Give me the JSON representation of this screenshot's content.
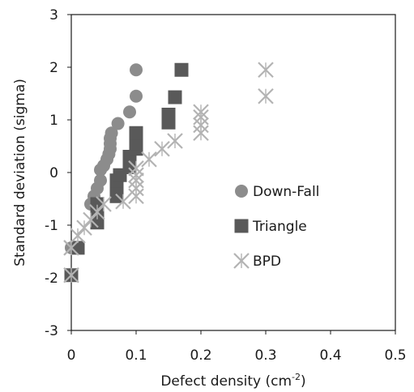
{
  "chart_data": {
    "type": "scatter",
    "xlabel": "Defect density (cm",
    "xlabel_sup": "-2",
    "xlabel_close": ")",
    "ylabel": "Standard deviation (sigma)",
    "xlim": [
      0,
      0.5
    ],
    "ylim": [
      -3,
      3
    ],
    "x_ticks": [
      "0",
      "0.1",
      "0.2",
      "0.3",
      "0.4",
      "0.5"
    ],
    "y_ticks": [
      "3",
      "2",
      "1",
      "0",
      "-1",
      "-2",
      "-3"
    ],
    "grid": false,
    "legend_position": "right",
    "series": [
      {
        "name": "Down-Fall",
        "marker": "circle",
        "color": "#8c8c8c",
        "points": [
          [
            0,
            -1.95
          ],
          [
            0,
            -1.43
          ],
          [
            0.03,
            -0.6
          ],
          [
            0.035,
            -0.45
          ],
          [
            0.04,
            -0.3
          ],
          [
            0.045,
            -0.15
          ],
          [
            0.045,
            0.05
          ],
          [
            0.05,
            0.13
          ],
          [
            0.055,
            0.25
          ],
          [
            0.058,
            0.35
          ],
          [
            0.06,
            0.45
          ],
          [
            0.06,
            0.55
          ],
          [
            0.06,
            0.65
          ],
          [
            0.062,
            0.75
          ],
          [
            0.072,
            0.93
          ],
          [
            0.09,
            1.15
          ],
          [
            0.1,
            1.45
          ],
          [
            0.1,
            1.95
          ]
        ]
      },
      {
        "name": "Triangle",
        "marker": "square",
        "color": "#595959",
        "points": [
          [
            0,
            -1.95
          ],
          [
            0.01,
            -1.43
          ],
          [
            0.04,
            -0.95
          ],
          [
            0.04,
            -0.8
          ],
          [
            0.04,
            -0.6
          ],
          [
            0.07,
            -0.45
          ],
          [
            0.07,
            -0.3
          ],
          [
            0.07,
            -0.15
          ],
          [
            0.075,
            -0.05
          ],
          [
            0.09,
            0.1
          ],
          [
            0.09,
            0.3
          ],
          [
            0.1,
            0.45
          ],
          [
            0.1,
            0.55
          ],
          [
            0.1,
            0.75
          ],
          [
            0.15,
            0.95
          ],
          [
            0.15,
            1.1
          ],
          [
            0.16,
            1.43
          ],
          [
            0.17,
            1.95
          ]
        ]
      },
      {
        "name": "BPD",
        "marker": "star",
        "color": "#b3b3b3",
        "points": [
          [
            0,
            -1.95
          ],
          [
            0,
            -1.43
          ],
          [
            0.01,
            -1.2
          ],
          [
            0.02,
            -1.05
          ],
          [
            0.03,
            -0.9
          ],
          [
            0.04,
            -0.75
          ],
          [
            0.05,
            -0.6
          ],
          [
            0.08,
            -0.55
          ],
          [
            0.1,
            -0.45
          ],
          [
            0.1,
            -0.3
          ],
          [
            0.1,
            -0.15
          ],
          [
            0.1,
            -0.05
          ],
          [
            0.1,
            0.08
          ],
          [
            0.12,
            0.25
          ],
          [
            0.14,
            0.45
          ],
          [
            0.16,
            0.6
          ],
          [
            0.2,
            0.75
          ],
          [
            0.2,
            0.9
          ],
          [
            0.2,
            1.05
          ],
          [
            0.2,
            1.15
          ],
          [
            0.3,
            1.45
          ],
          [
            0.3,
            1.95
          ]
        ]
      }
    ]
  }
}
